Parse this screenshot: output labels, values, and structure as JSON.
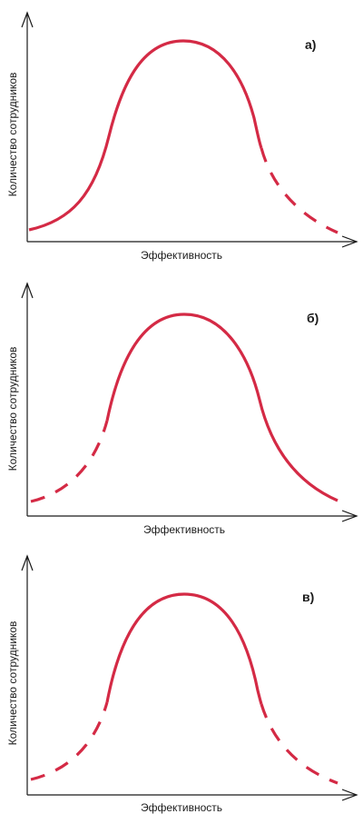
{
  "chart_data": [
    {
      "type": "line",
      "panel_label": "а)",
      "xlabel": "Эффективность",
      "ylabel": "Количество сотрудников",
      "dashed_tail": "right",
      "series": [
        {
          "x": [
            0,
            50,
            100
          ],
          "y": [
            0.03,
            1.0,
            0.03
          ]
        }
      ],
      "dash_segments": [
        "right"
      ]
    },
    {
      "type": "line",
      "panel_label": "б)",
      "xlabel": "Эффективность",
      "ylabel": "Количество сотрудников",
      "dashed_tail": "left",
      "series": [
        {
          "x": [
            0,
            50,
            100
          ],
          "y": [
            0.03,
            1.0,
            0.03
          ]
        }
      ],
      "dash_segments": [
        "left"
      ]
    },
    {
      "type": "line",
      "panel_label": "в)",
      "xlabel": "Эффективность",
      "ylabel": "Количество сотрудников",
      "dashed_tail": "both",
      "series": [
        {
          "x": [
            0,
            50,
            100
          ],
          "y": [
            0.03,
            1.0,
            0.03
          ]
        }
      ],
      "dash_segments": [
        "left",
        "right"
      ]
    }
  ],
  "colors": {
    "curve": "#d42a45",
    "axis": "#1a1a1a"
  }
}
